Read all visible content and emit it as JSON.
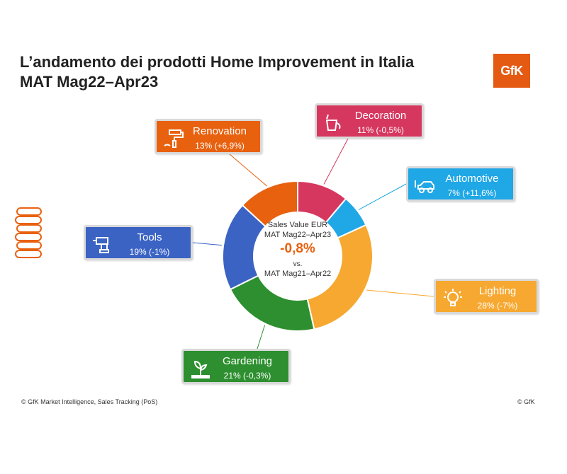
{
  "title": {
    "line1": "L’andamento dei prodotti Home Improvement in Italia",
    "line2": "MAT Mag22–Apr23"
  },
  "logo": "GfK",
  "center": {
    "line1": "Sales Value EUR",
    "line2": "MAT Mag22–Apr23",
    "change": "-0,8%",
    "vs": "vs.",
    "line4": "MAT Mag21–Apr22"
  },
  "footer": {
    "source": "© GfK Market Intelligence, Sales Tracking (PoS)",
    "copyright": "© GfK"
  },
  "chart_data": {
    "type": "pie",
    "donut": true,
    "categories": [
      "Decoration",
      "Automotive",
      "Lighting",
      "Gardening",
      "Tools",
      "Renovation"
    ],
    "values": [
      11,
      7,
      28,
      21,
      19,
      13
    ],
    "labels": [
      "11% (-0,5%)",
      "7% (+11,6%)",
      "28% (-7%)",
      "21% (-0,3%)",
      "19% (-1%)",
      "13% (+6,9%)"
    ],
    "colors": [
      "#d6375f",
      "#1fa7e6",
      "#f6a830",
      "#2d8f2f",
      "#3b63c4",
      "#e8610f"
    ],
    "icons": [
      "paint-bucket-icon",
      "car-icon",
      "light-bulb-icon",
      "plant-sprout-icon",
      "power-drill-icon",
      "paint-roller-icon"
    ]
  }
}
